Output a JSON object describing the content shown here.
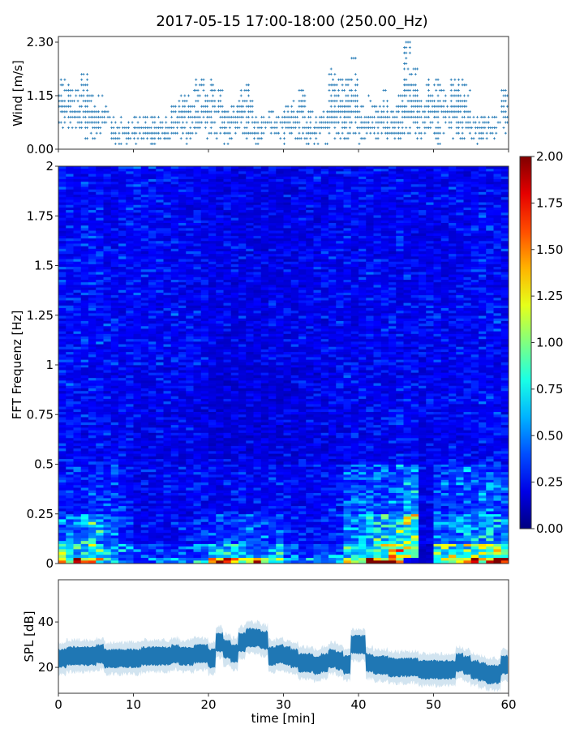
{
  "title": "2017-05-15 17:00-18:00 (250.00_Hz)",
  "chart_data": [
    {
      "type": "scatter",
      "ylabel": "Wind [m/s]",
      "xlabel": "",
      "xlim": [
        0,
        60
      ],
      "ylim": [
        0,
        2.3
      ],
      "yticks": [
        "0.00",
        "1.15",
        "2.30"
      ],
      "xticks": [
        0,
        10,
        20,
        30,
        40,
        50,
        60
      ],
      "marker": "+",
      "color": "#1f77b4",
      "grid": false,
      "minutes": [
        0,
        1,
        2,
        3,
        4,
        5,
        6,
        7,
        8,
        9,
        10,
        11,
        12,
        13,
        14,
        15,
        16,
        17,
        18,
        19,
        20,
        21,
        22,
        23,
        24,
        25,
        26,
        27,
        28,
        29,
        30,
        31,
        32,
        33,
        34,
        35,
        36,
        37,
        38,
        39,
        40,
        41,
        42,
        43,
        44,
        45,
        46,
        47,
        48,
        49,
        50,
        51,
        52,
        53,
        54,
        55,
        56,
        57,
        58,
        59
      ],
      "wind_range_per_minute": [
        [
          0.5,
          1.5
        ],
        [
          0.5,
          1.4
        ],
        [
          0.3,
          1.3
        ],
        [
          0.2,
          1.7
        ],
        [
          0.2,
          1.2
        ],
        [
          0.2,
          1.2
        ],
        [
          0.4,
          1.0
        ],
        [
          0.1,
          0.7
        ],
        [
          0.1,
          0.7
        ],
        [
          0.1,
          0.6
        ],
        [
          0.1,
          0.8
        ],
        [
          0.2,
          0.7
        ],
        [
          0.1,
          0.7
        ],
        [
          0.2,
          0.7
        ],
        [
          0.1,
          0.8
        ],
        [
          0.2,
          1.0
        ],
        [
          0.2,
          1.2
        ],
        [
          0.1,
          1.2
        ],
        [
          0.2,
          1.6
        ],
        [
          0.2,
          1.5
        ],
        [
          0.3,
          1.5
        ],
        [
          0.2,
          1.3
        ],
        [
          0.1,
          0.9
        ],
        [
          0.2,
          1.0
        ],
        [
          0.3,
          1.3
        ],
        [
          0.2,
          1.4
        ],
        [
          0.1,
          0.8
        ],
        [
          0.2,
          0.8
        ],
        [
          0.2,
          0.9
        ],
        [
          0.2,
          0.8
        ],
        [
          0.1,
          1.0
        ],
        [
          0.2,
          1.1
        ],
        [
          0.2,
          1.3
        ],
        [
          0.1,
          0.9
        ],
        [
          0.1,
          0.7
        ],
        [
          0.1,
          0.9
        ],
        [
          0.2,
          1.8
        ],
        [
          0.2,
          1.6
        ],
        [
          0.2,
          1.5
        ],
        [
          0.3,
          2.0
        ],
        [
          0.1,
          1.0
        ],
        [
          0.2,
          1.2
        ],
        [
          0.2,
          1.0
        ],
        [
          0.2,
          1.3
        ],
        [
          0.2,
          0.9
        ],
        [
          0.2,
          1.2
        ],
        [
          0.3,
          2.3
        ],
        [
          0.2,
          1.8
        ],
        [
          0.2,
          1.1
        ],
        [
          0.4,
          1.6
        ],
        [
          0.1,
          1.6
        ],
        [
          0.3,
          1.3
        ],
        [
          0.2,
          1.5
        ],
        [
          0.2,
          1.5
        ],
        [
          0.2,
          1.4
        ],
        [
          0.1,
          0.8
        ],
        [
          0.2,
          0.8
        ],
        [
          0.2,
          0.8
        ],
        [
          0.2,
          0.8
        ],
        [
          0.4,
          1.3
        ]
      ]
    },
    {
      "type": "heatmap",
      "ylabel": "FFT Frequenz [Hz]",
      "xlim": [
        0,
        60
      ],
      "ylim": [
        0,
        2
      ],
      "yticks": [
        "0",
        "0.25",
        "0.5",
        "0.75",
        "1",
        "1.25",
        "1.5",
        "1.75",
        "2"
      ],
      "colormap": "jet",
      "colorbar": {
        "range": [
          0,
          2
        ],
        "ticks": [
          "0.00",
          "0.25",
          "0.50",
          "0.75",
          "1.00",
          "1.25",
          "1.50",
          "1.75",
          "2.00"
        ]
      },
      "time_bins_min": [
        0,
        2,
        4,
        6,
        8,
        10,
        12,
        14,
        16,
        18,
        20,
        22,
        24,
        26,
        28,
        30,
        32,
        34,
        36,
        38,
        40,
        42,
        44,
        46,
        48,
        50,
        52,
        54,
        56,
        58
      ],
      "freq_bands_hz": [
        [
          0,
          0.03
        ],
        [
          0.03,
          0.1
        ],
        [
          0.1,
          0.25
        ],
        [
          0.25,
          0.5
        ],
        [
          0.5,
          1
        ],
        [
          1,
          2
        ]
      ],
      "values": [
        [
          1.3,
          1.5,
          1.2,
          0.8,
          0.5,
          0.4,
          0.5,
          0.5,
          0.6,
          0.7,
          1.9,
          1.9,
          1.8,
          1.5,
          1.4,
          0.6,
          0.6,
          0.4,
          0.7,
          1.6,
          1.7,
          1.8,
          1.9,
          0.2,
          0.2,
          1.1,
          1.3,
          1.7,
          1.7,
          1.9
        ],
        [
          1.0,
          0.8,
          0.9,
          0.6,
          0.5,
          0.4,
          0.4,
          0.4,
          0.4,
          0.5,
          0.6,
          0.8,
          0.7,
          0.6,
          0.7,
          0.5,
          0.4,
          0.4,
          0.5,
          0.9,
          1.0,
          1.1,
          1.2,
          1.3,
          0.2,
          0.9,
          0.9,
          1.0,
          1.1,
          1.2
        ],
        [
          0.5,
          0.6,
          0.7,
          0.5,
          0.35,
          0.3,
          0.3,
          0.3,
          0.3,
          0.35,
          0.4,
          0.45,
          0.45,
          0.45,
          0.45,
          0.35,
          0.3,
          0.3,
          0.35,
          0.6,
          0.7,
          0.75,
          0.8,
          1.0,
          0.25,
          0.55,
          0.6,
          0.65,
          0.7,
          0.6
        ],
        [
          0.35,
          0.35,
          0.4,
          0.35,
          0.3,
          0.28,
          0.28,
          0.28,
          0.28,
          0.3,
          0.3,
          0.3,
          0.3,
          0.3,
          0.3,
          0.3,
          0.28,
          0.28,
          0.3,
          0.45,
          0.45,
          0.45,
          0.5,
          0.6,
          0.25,
          0.4,
          0.45,
          0.5,
          0.5,
          0.45
        ],
        [
          0.3,
          0.3,
          0.3,
          0.28,
          0.28,
          0.26,
          0.26,
          0.26,
          0.26,
          0.24,
          0.22,
          0.22,
          0.22,
          0.22,
          0.22,
          0.22,
          0.24,
          0.24,
          0.26,
          0.28,
          0.28,
          0.28,
          0.28,
          0.3,
          0.26,
          0.28,
          0.28,
          0.3,
          0.3,
          0.3
        ],
        [
          0.32,
          0.32,
          0.32,
          0.3,
          0.3,
          0.3,
          0.3,
          0.3,
          0.28,
          0.28,
          0.26,
          0.25,
          0.25,
          0.25,
          0.25,
          0.25,
          0.26,
          0.26,
          0.28,
          0.28,
          0.28,
          0.28,
          0.28,
          0.28,
          0.28,
          0.28,
          0.28,
          0.28,
          0.3,
          0.3
        ]
      ]
    },
    {
      "type": "line",
      "ylabel": "SPL [dB]",
      "xlabel": "time [min]",
      "xlim": [
        0,
        60
      ],
      "ylim": [
        8.6,
        58.6
      ],
      "yticks": [
        "20",
        "40"
      ],
      "xticks": [
        "0",
        "10",
        "20",
        "30",
        "40",
        "50",
        "60"
      ],
      "color": "#1f77b4",
      "grid": false,
      "minutes": [
        0,
        1,
        2,
        3,
        4,
        5,
        6,
        7,
        8,
        9,
        10,
        11,
        12,
        13,
        14,
        15,
        16,
        17,
        18,
        19,
        20,
        21,
        22,
        23,
        24,
        25,
        26,
        27,
        28,
        29,
        30,
        31,
        32,
        33,
        34,
        35,
        36,
        37,
        38,
        39,
        40,
        41,
        42,
        43,
        44,
        45,
        46,
        47,
        48,
        49,
        50,
        51,
        52,
        53,
        54,
        55,
        56,
        57,
        58,
        59
      ],
      "spl_mean_per_minute": [
        24,
        25,
        25,
        25,
        25,
        26,
        24,
        24,
        24,
        24,
        24,
        25,
        25,
        25,
        25,
        26,
        25,
        25,
        26,
        26,
        24,
        31,
        28,
        26,
        31,
        33,
        33,
        32,
        25,
        26,
        25,
        24,
        22,
        22,
        21,
        22,
        24,
        23,
        21,
        30,
        30,
        22,
        21,
        21,
        20,
        20,
        20,
        20,
        19,
        19,
        19,
        19,
        19,
        22,
        21,
        19,
        18,
        17,
        17,
        21
      ]
    }
  ]
}
